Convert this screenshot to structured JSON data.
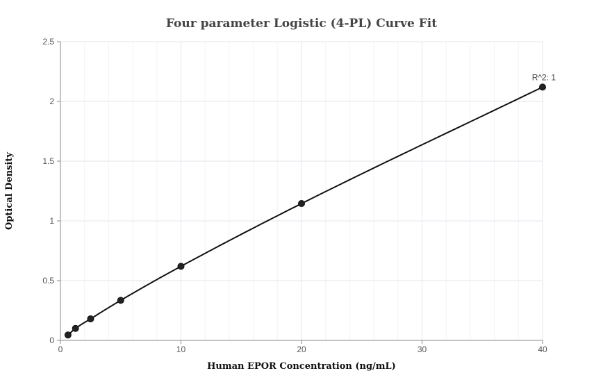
{
  "chart_data": {
    "type": "scatter",
    "title": "Four parameter Logistic (4-PL) Curve Fit",
    "xlabel": "Human EPOR Concentration (ng/mL)",
    "ylabel": "Optical Density",
    "xlim": [
      0,
      40
    ],
    "ylim": [
      0,
      2.5
    ],
    "x_ticks": [
      0,
      10,
      20,
      30,
      40
    ],
    "x_tick_labels": [
      "0",
      "10",
      "20",
      "30",
      "40"
    ],
    "y_ticks": [
      0,
      0.5,
      1,
      1.5,
      2,
      2.5
    ],
    "y_tick_labels": [
      "0",
      "0.5",
      "1",
      "1.5",
      "2",
      "2.5"
    ],
    "grid": true,
    "series": [
      {
        "x": [
          0.625,
          1.25,
          2.5,
          5,
          10,
          20,
          40
        ],
        "y": [
          0.045,
          0.1,
          0.18,
          0.335,
          0.62,
          1.145,
          2.12
        ]
      }
    ],
    "annotation": "R^2: 1",
    "colors": {
      "point": "#222222",
      "line": "#111111",
      "grid": "#e6e6ee",
      "axis": "#888888"
    }
  }
}
